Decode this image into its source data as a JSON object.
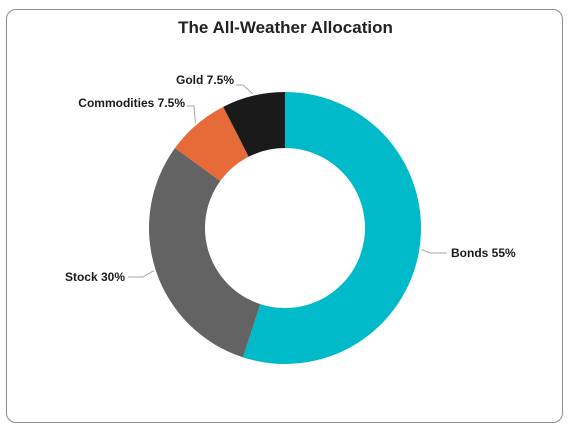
{
  "chart_data": {
    "type": "pie",
    "style": "donut",
    "title": "The All-Weather Allocation",
    "slices": [
      {
        "name": "Bonds",
        "value": 55,
        "label": "Bonds 55%",
        "color": "#00B9C9"
      },
      {
        "name": "Stock",
        "value": 30,
        "label": "Stock 30%",
        "color": "#636363"
      },
      {
        "name": "Commodities",
        "value": 7.5,
        "label": "Commodities 7.5%",
        "color": "#E76B39"
      },
      {
        "name": "Gold",
        "value": 7.5,
        "label": "Gold 7.5%",
        "color": "#1A1A1A"
      }
    ],
    "legend": "none"
  }
}
